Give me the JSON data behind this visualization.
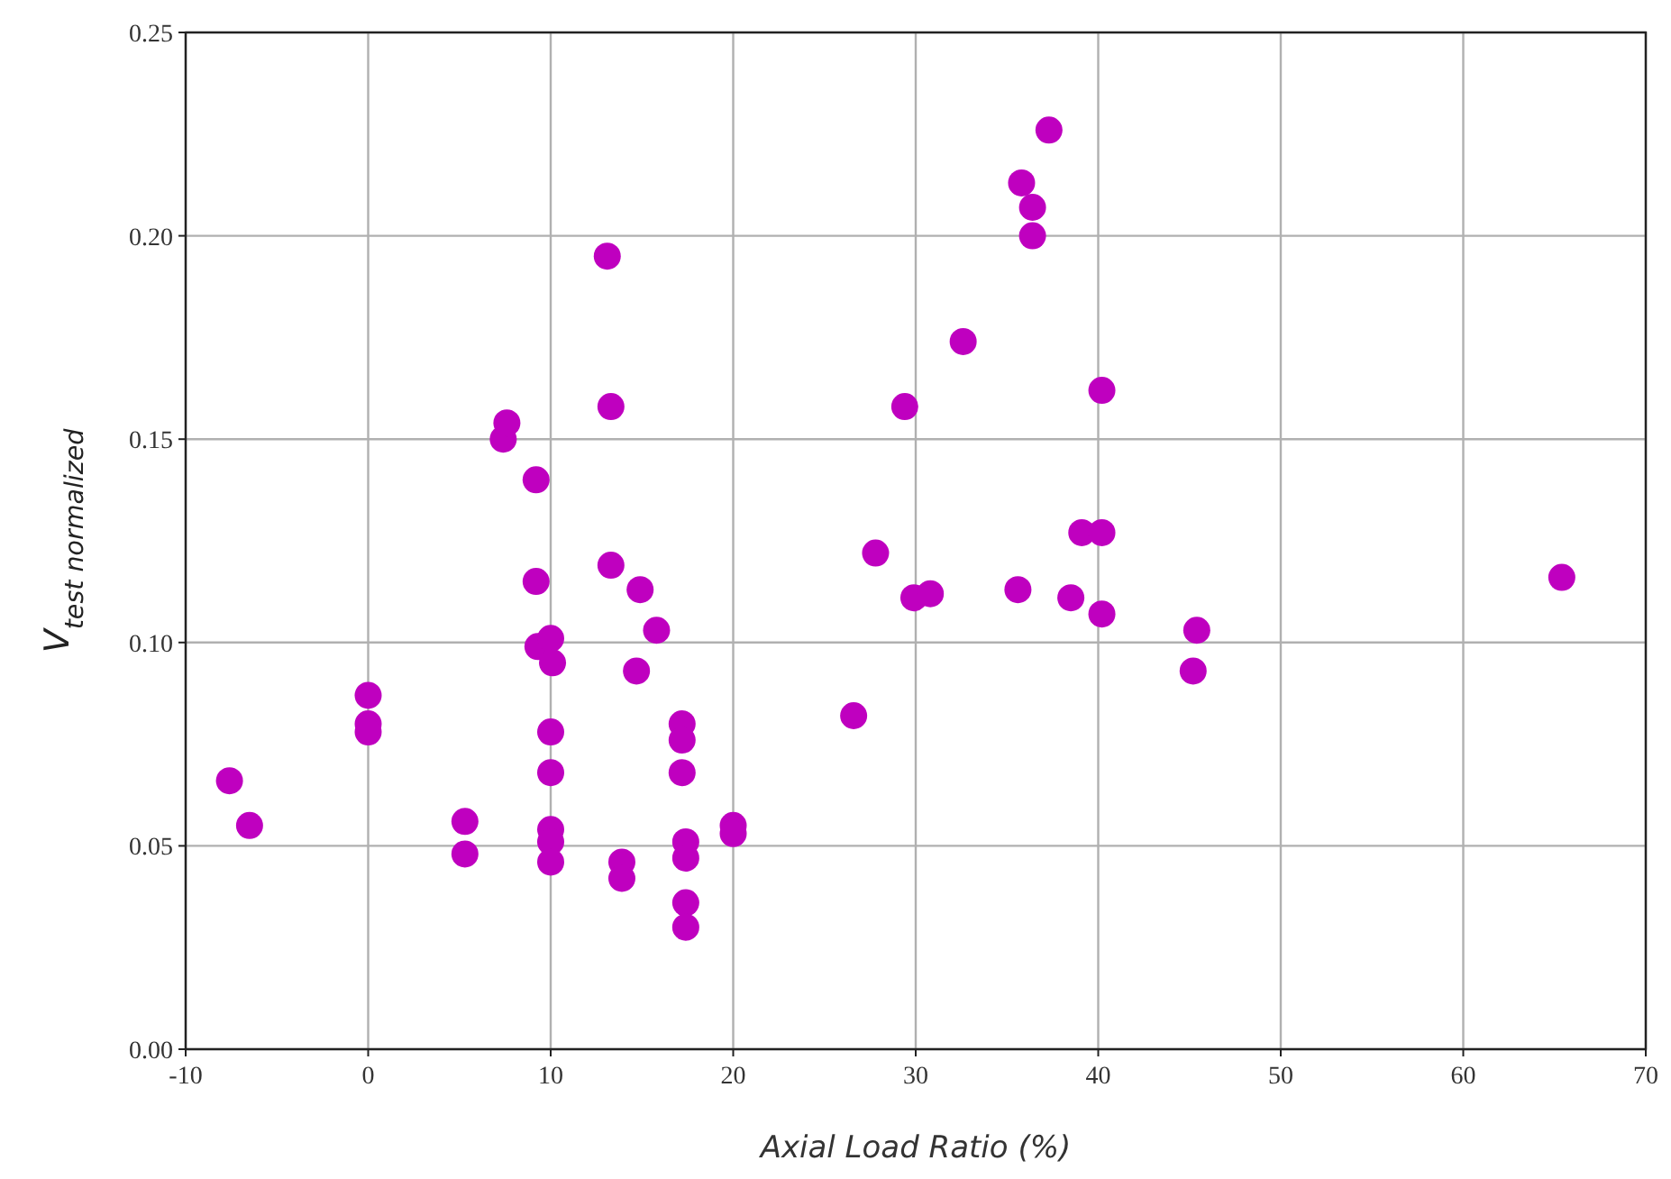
{
  "chart_data": {
    "type": "scatter",
    "xlabel": "Axial Load Ratio (%)",
    "ylabel": "V$_{test normalized}$",
    "x": [
      -7.6,
      -6.5,
      0,
      0,
      0,
      5.3,
      5.3,
      7.4,
      7.6,
      9.2,
      9.2,
      9.3,
      10,
      10.1,
      10,
      10,
      10,
      10,
      10,
      13.1,
      13.3,
      13.3,
      13.9,
      13.9,
      14.9,
      14.7,
      15.8,
      17.2,
      17.2,
      17.2,
      17.4,
      17.4,
      17.4,
      17.4,
      20,
      20,
      26.6,
      27.8,
      29.4,
      29.9,
      30.8,
      32.6,
      35.6,
      35.8,
      36.4,
      36.4,
      37.3,
      39.1,
      38.5,
      40.2,
      40.2,
      40.2,
      45.4,
      45.2,
      65.4
    ],
    "series": [
      {
        "color": "#bf00bf",
        "values": [
          0.066,
          0.055,
          0.087,
          0.08,
          0.078,
          0.056,
          0.048,
          0.15,
          0.154,
          0.14,
          0.115,
          0.099,
          0.101,
          0.095,
          0.078,
          0.068,
          0.054,
          0.051,
          0.046,
          0.195,
          0.158,
          0.119,
          0.046,
          0.042,
          0.113,
          0.093,
          0.103,
          0.08,
          0.076,
          0.068,
          0.051,
          0.047,
          0.036,
          0.03,
          0.055,
          0.053,
          0.082,
          0.122,
          0.158,
          0.111,
          0.112,
          0.174,
          0.113,
          0.213,
          0.207,
          0.2,
          0.226,
          0.127,
          0.111,
          0.162,
          0.127,
          0.107,
          0.103,
          0.093,
          0.116
        ]
      }
    ],
    "xlim": [
      -10,
      70
    ],
    "xticks": [
      -10,
      0,
      10,
      20,
      30,
      40,
      50,
      60,
      70
    ],
    "ylim": [
      0,
      0.25
    ],
    "yticks": [
      {
        "value": 0,
        "label": "0.00"
      },
      {
        "value": 0.05,
        "label": "0.05"
      },
      {
        "value": 0.1,
        "label": "0.10"
      },
      {
        "value": 0.15,
        "label": "0.15"
      },
      {
        "value": 0.2,
        "label": "0.20"
      },
      {
        "value": 0.25,
        "label": "0.25"
      }
    ],
    "grid": true,
    "marker": "circle"
  }
}
